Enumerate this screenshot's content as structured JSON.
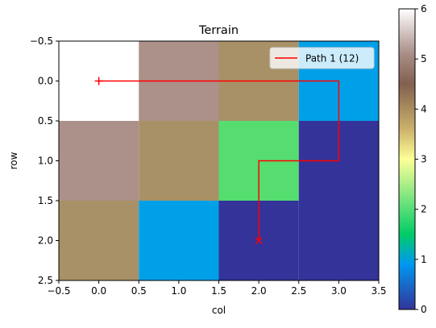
{
  "chart_data": {
    "type": "heatmap",
    "title": "Terrain",
    "xlabel": "col",
    "ylabel": "row",
    "xlim": [
      -0.5,
      3.5
    ],
    "ylim": [
      2.5,
      -0.5
    ],
    "x_ticks": [
      "−0.5",
      "0.0",
      "0.5",
      "1.0",
      "1.5",
      "2.0",
      "2.5",
      "3.0",
      "3.5"
    ],
    "x_tick_values": [
      -0.5,
      0.0,
      0.5,
      1.0,
      1.5,
      2.0,
      2.5,
      3.0,
      3.5
    ],
    "y_ticks": [
      "−0.5",
      "0.0",
      "0.5",
      "1.0",
      "1.5",
      "2.0",
      "2.5"
    ],
    "y_tick_values": [
      -0.5,
      0.0,
      0.5,
      1.0,
      1.5,
      2.0,
      2.5
    ],
    "grid": false,
    "colormap": "terrain",
    "matrix": [
      [
        6,
        5,
        4,
        1
      ],
      [
        5,
        4,
        2,
        0
      ],
      [
        4,
        1,
        0,
        0
      ]
    ],
    "cell_colors": {
      "0": "#333399",
      "1": "#00a0e8",
      "2": "#55dd70",
      "4": "#a89166",
      "5": "#ab9189",
      "6": "#ffffff"
    },
    "path": {
      "name": "Path 1 (12)",
      "color": "#ff0000",
      "points": [
        [
          0,
          0
        ],
        [
          3,
          0
        ],
        [
          3,
          1
        ],
        [
          2,
          1
        ],
        [
          2,
          2
        ]
      ],
      "start_marker": "+",
      "end_marker": "x"
    },
    "legend_position": "upper right",
    "colorbar": {
      "vmin": 0,
      "vmax": 6,
      "ticks": [
        "0",
        "1",
        "2",
        "3",
        "4",
        "5",
        "6"
      ],
      "tick_values": [
        0,
        1,
        2,
        3,
        4,
        5,
        6
      ],
      "stops": [
        {
          "v": 0.0,
          "color": "#333399"
        },
        {
          "v": 0.9,
          "color": "#0098f0"
        },
        {
          "v": 1.2,
          "color": "#00b2b0"
        },
        {
          "v": 1.5,
          "color": "#00cc66"
        },
        {
          "v": 2.4,
          "color": "#99eb85"
        },
        {
          "v": 3.0,
          "color": "#feff98"
        },
        {
          "v": 3.6,
          "color": "#cbb16a"
        },
        {
          "v": 4.5,
          "color": "#826050"
        },
        {
          "v": 5.1,
          "color": "#a98d86"
        },
        {
          "v": 6.0,
          "color": "#ffffff"
        }
      ]
    }
  }
}
